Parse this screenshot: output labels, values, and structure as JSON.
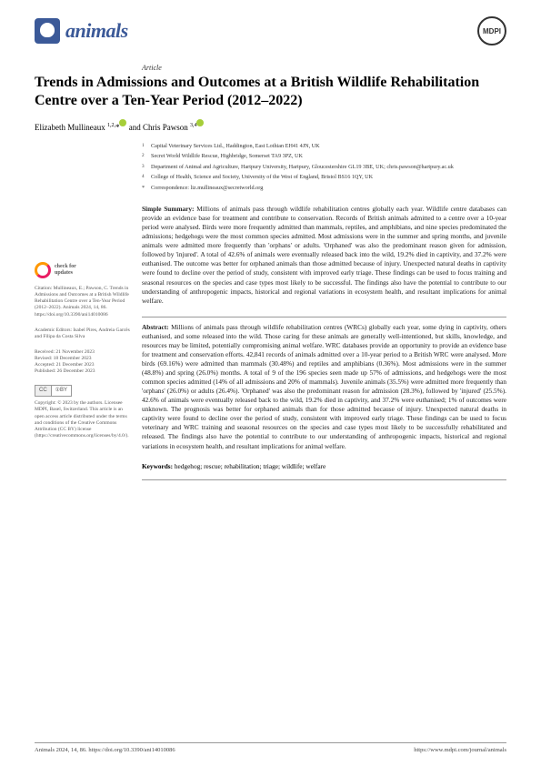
{
  "journal": {
    "name": "animals",
    "publisher": "MDPI"
  },
  "article": {
    "type": "Article",
    "title": "Trends in Admissions and Outcomes at a British Wildlife Rehabilitation Centre over a Ten-Year Period (2012–2022)",
    "authors_html": "Elizabeth Mullineaux <sup>1,2,</sup>* and Chris Pawson <sup>3,4</sup>"
  },
  "affiliations": {
    "a1": "Capital Veterinary Services Ltd., Haddington, East Lothian EH41 4JN, UK",
    "a2": "Secret World Wildlife Rescue, Highbridge, Somerset TA9 3PZ, UK",
    "a3": "Department of Animal and Agriculture, Hartpury University, Hartpury, Gloucestershire GL19 3BE, UK; chris.pawson@hartpury.ac.uk",
    "a4": "College of Health, Science and Society, University of the West of England, Bristol BS16 1QY, UK",
    "corr": "Correspondence: liz.mullineaux@secretworld.org"
  },
  "simple_summary": "Simple Summary: Millions of animals pass through wildlife rehabilitation centres globally each year. Wildlife centre databases can provide an evidence base for treatment and contribute to conservation. Records of British animals admitted to a centre over a 10-year period were analysed. Birds were more frequently admitted than mammals, reptiles, and amphibians, and nine species predominated the admissions; hedgehogs were the most common species admitted. Most admissions were in the summer and spring months, and juvenile animals were admitted more frequently than 'orphans' or adults. 'Orphaned' was also the predominant reason given for admission, followed by 'injured'. A total of 42.6% of animals were eventually released back into the wild, 19.2% died in captivity, and 37.2% were euthanised. The outcome was better for orphaned animals than those admitted because of injury. Unexpected natural deaths in captivity were found to decline over the period of study, consistent with improved early triage. These findings can be used to focus training and seasonal resources on the species and case types most likely to be successful. The findings also have the potential to contribute to our understanding of anthropogenic impacts, historical and regional variations in ecosystem health, and resultant implications for animal welfare.",
  "abstract": "Abstract: Millions of animals pass through wildlife rehabilitation centres (WRCs) globally each year, some dying in captivity, others euthanised, and some released into the wild. Those caring for these animals are generally well-intentioned, but skills, knowledge, and resources may be limited, potentially compromising animal welfare. WRC databases provide an opportunity to provide an evidence base for treatment and conservation efforts. 42,841 records of animals admitted over a 10-year period to a British WRC were analysed. More birds (69.16%) were admitted than mammals (30.48%) and reptiles and amphibians (0.36%). Most admissions were in the summer (48.8%) and spring (26.0%) months. A total of 9 of the 196 species seen made up 57% of admissions, and hedgehogs were the most common species admitted (14% of all admissions and 20% of mammals). Juvenile animals (35.5%) were admitted more frequently than 'orphans' (26.0%) or adults (26.4%). 'Orphaned' was also the predominant reason for admission (28.3%), followed by 'injured' (25.5%). 42.6% of animals were eventually released back to the wild, 19.2% died in captivity, and 37.2% were euthanised; 1% of outcomes were unknown. The prognosis was better for orphaned animals than for those admitted because of injury. Unexpected natural deaths in captivity were found to decline over the period of study, consistent with improved early triage. These findings can be used to focus veterinary and WRC training and seasonal resources on the species and case types most likely to be successfully rehabilitated and released. The findings also have the potential to contribute to our understanding of anthropogenic impacts, historical and regional variations in ecosystem health, and resultant implications for animal welfare.",
  "keywords": "Keywords: hedgehog; rescue; rehabilitation; triage; wildlife; welfare",
  "sidebar": {
    "check_updates": "check for updates",
    "citation": "Citation: Mullineaux, E.; Pawson, C. Trends in Admissions and Outcomes at a British Wildlife Rehabilitation Centre over a Ten-Year Period (2012–2022). Animals 2024, 14, 86. https://doi.org/10.3390/ani14010086",
    "editors": "Academic Editors: Isabel Pires, Andreia Garcês and Filipa da Costa Silva",
    "received": "Received: 21 November 2023",
    "revised": "Revised: 18 December 2023",
    "accepted": "Accepted: 21 December 2023",
    "published": "Published: 26 December 2023",
    "copyright": "Copyright: © 2023 by the authors. Licensee MDPI, Basel, Switzerland. This article is an open access article distributed under the terms and conditions of the Creative Commons Attribution (CC BY) license (https://creativecommons.org/licenses/by/4.0/)."
  },
  "footer": {
    "left": "Animals 2024, 14, 86. https://doi.org/10.3390/ani14010086",
    "right": "https://www.mdpi.com/journal/animals"
  }
}
